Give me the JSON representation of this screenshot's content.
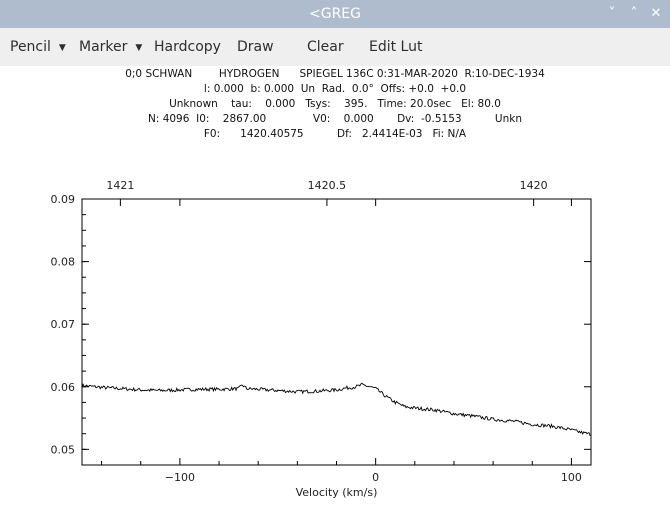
{
  "window": {
    "title": "<GREG",
    "controls": [
      {
        "name": "minimize-icon",
        "glyph": "˅"
      },
      {
        "name": "maximize-icon",
        "glyph": "˄"
      },
      {
        "name": "close-icon",
        "glyph": "✕"
      }
    ]
  },
  "menubar": {
    "pencil": "Pencil",
    "marker": "Marker",
    "hardcopy": "Hardcopy",
    "draw": "Draw",
    "clear": "Clear",
    "edit_lut": "Edit Lut",
    "dropdown_glyph": "▼"
  },
  "header": {
    "line1": "0;0 SCHWAN        HYDROGEN      SPIEGEL 136C 0:31-MAR-2020  R:10-DEC-1934",
    "line2": "l: 0.000  b: 0.000  Un  Rad.  0.0°  Offs: +0.0  +0.0",
    "line3": "Unknown    tau:    0.000   Tsys:    395.   Time: 20.0sec   El: 80.0",
    "line4": "N: 4096  I0:    2867.00              V0:    0.000       Dv:  -0.5153          Unkn",
    "line5": "F0:      1420.40575          Df:   2.4414E-03   Fi: N/A"
  },
  "chart_data": {
    "type": "line",
    "xlabel": "Velocity (km/s)",
    "ylabel": "",
    "xlim": [
      -150,
      110
    ],
    "ylim": [
      0.0475,
      0.09
    ],
    "x_ticks": [
      -100,
      0,
      100
    ],
    "x_tick_labels": [
      "−100",
      "0",
      "100"
    ],
    "y_ticks": [
      0.05,
      0.06,
      0.07,
      0.08,
      0.09
    ],
    "y_tick_labels": [
      "0.05",
      "0.06",
      "0.07",
      "0.08",
      "0.09"
    ],
    "top_axis": {
      "ticks": [
        1421,
        1420.5,
        1420
      ],
      "tick_labels": [
        "1421",
        "1420.5",
        "1420"
      ],
      "velocity_at_tick": [
        -130.4,
        -24.9,
        80.7
      ]
    },
    "grid": false,
    "series": [
      {
        "x": [
          -150,
          -140,
          -130,
          -120,
          -110,
          -100,
          -90,
          -80,
          -70,
          -68,
          -66,
          -60,
          -50,
          -40,
          -30,
          -20,
          -15,
          -10,
          -7,
          -4,
          0,
          5,
          10,
          15,
          20,
          30,
          40,
          50,
          60,
          70,
          80,
          90,
          100,
          105,
          110
        ],
        "y": [
          0.0602,
          0.0599,
          0.0597,
          0.0595,
          0.0594,
          0.0595,
          0.0596,
          0.0596,
          0.0597,
          0.0603,
          0.0597,
          0.0596,
          0.0594,
          0.0592,
          0.0593,
          0.0595,
          0.0598,
          0.06,
          0.0603,
          0.0601,
          0.0597,
          0.0585,
          0.0575,
          0.0568,
          0.0566,
          0.0563,
          0.0557,
          0.0553,
          0.0548,
          0.0545,
          0.054,
          0.0537,
          0.0531,
          0.0527,
          0.0524
        ]
      }
    ]
  }
}
